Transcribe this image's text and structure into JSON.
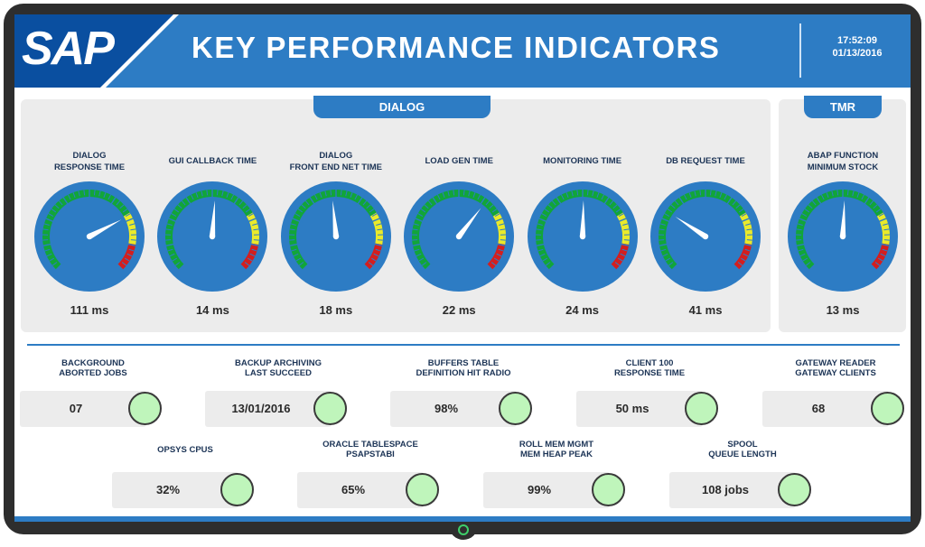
{
  "header": {
    "logo": "SAP",
    "title": "KEY PERFORMANCE INDICATORS",
    "time": "17:52:09",
    "date": "01/13/2016"
  },
  "colors": {
    "accent": "#2d7cc4",
    "logo_blue": "#0a4fa0",
    "gauge_face": "#2d7cc4",
    "zone_green": "#11a53a",
    "zone_yellow": "#eaea2a",
    "zone_red": "#d41e1e",
    "status_ok": "#bff5bb"
  },
  "dialog_panel": {
    "title": "DIALOG",
    "gauges": [
      {
        "label_line1": "DIALOG",
        "label_line2": "RESPONSE TIME",
        "value": "111 ms",
        "needle_fraction": 0.73
      },
      {
        "label_line1": "GUI CALLBACK TIME",
        "label_line2": "",
        "value": "14 ms",
        "needle_fraction": 0.515
      },
      {
        "label_line1": "DIALOG",
        "label_line2": "FRONT END NET TIME",
        "value": "18 ms",
        "needle_fraction": 0.48
      },
      {
        "label_line1": "LOAD GEN TIME",
        "label_line2": "",
        "value": "22 ms",
        "needle_fraction": 0.64
      },
      {
        "label_line1": "MONITORING TIME",
        "label_line2": "",
        "value": "24 ms",
        "needle_fraction": 0.505
      },
      {
        "label_line1": "DB REQUEST TIME",
        "label_line2": "",
        "value": "41 ms",
        "needle_fraction": 0.29
      }
    ]
  },
  "tmr_panel": {
    "title": "TMR",
    "gauges": [
      {
        "label_line1": "ABAP FUNCTION",
        "label_line2": "MINIMUM STOCK",
        "value": "13 ms",
        "needle_fraction": 0.51
      }
    ]
  },
  "kpis": [
    {
      "label_line1": "BACKGROUND",
      "label_line2": "ABORTED JOBS",
      "value": "07"
    },
    {
      "label_line1": "BACKUP ARCHIVING",
      "label_line2": "LAST SUCCEED",
      "value": "13/01/2016"
    },
    {
      "label_line1": "BUFFERS TABLE",
      "label_line2": "DEFINITION HIT RADIO",
      "value": "98%"
    },
    {
      "label_line1": "CLIENT 100",
      "label_line2": "RESPONSE TIME",
      "value": "50 ms"
    },
    {
      "label_line1": "GATEWAY READER",
      "label_line2": "GATEWAY CLIENTS",
      "value": "68"
    },
    {
      "label_line1": "OPSYS CPUS",
      "label_line2": "",
      "value": "32%"
    },
    {
      "label_line1": "ORACLE TABLESPACE",
      "label_line2": "PSAPSTABI",
      "value": "65%"
    },
    {
      "label_line1": "ROLL MEM MGMT",
      "label_line2": "MEM HEAP PEAK",
      "value": "99%"
    },
    {
      "label_line1": "SPOOL",
      "label_line2": "QUEUE LENGTH",
      "value": "108 jobs"
    }
  ]
}
